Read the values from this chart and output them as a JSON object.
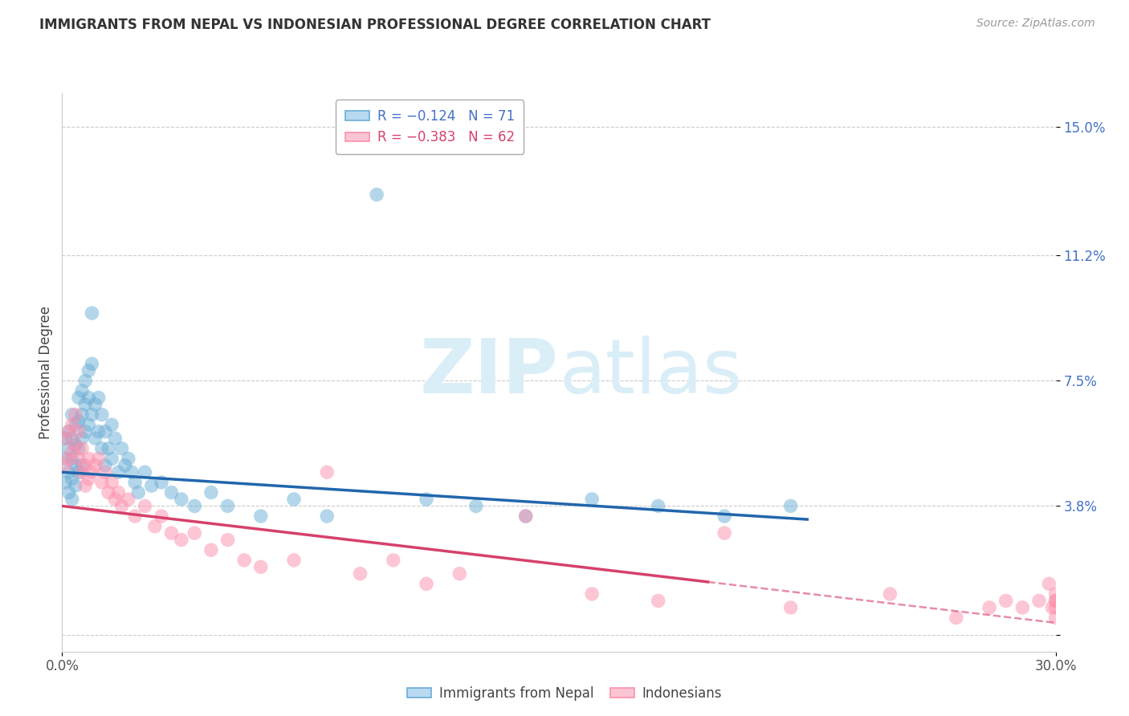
{
  "title": "IMMIGRANTS FROM NEPAL VS INDONESIAN PROFESSIONAL DEGREE CORRELATION CHART",
  "source": "Source: ZipAtlas.com",
  "ylabel": "Professional Degree",
  "yticks": [
    0.0,
    0.038,
    0.075,
    0.112,
    0.15
  ],
  "ytick_labels": [
    "",
    "3.8%",
    "7.5%",
    "11.2%",
    "15.0%"
  ],
  "xlim": [
    0.0,
    0.3
  ],
  "ylim": [
    -0.005,
    0.16
  ],
  "nepal_color": "#6baed6",
  "indonesia_color": "#fc8fac",
  "nepal_line_color": "#2166ac",
  "indonesia_line_color": "#d6416b",
  "background_color": "#ffffff",
  "watermark_color": "#daeef8",
  "nepal_intercept": 0.048,
  "nepal_slope": -0.062,
  "nepal_line_xend": 0.225,
  "indonesia_intercept": 0.038,
  "indonesia_slope": -0.115,
  "indonesia_solid_xend": 0.195,
  "nepal_x": [
    0.001,
    0.001,
    0.001,
    0.002,
    0.002,
    0.002,
    0.002,
    0.003,
    0.003,
    0.003,
    0.003,
    0.003,
    0.004,
    0.004,
    0.004,
    0.004,
    0.005,
    0.005,
    0.005,
    0.005,
    0.006,
    0.006,
    0.006,
    0.006,
    0.007,
    0.007,
    0.007,
    0.008,
    0.008,
    0.008,
    0.009,
    0.009,
    0.009,
    0.01,
    0.01,
    0.011,
    0.011,
    0.012,
    0.012,
    0.013,
    0.013,
    0.014,
    0.015,
    0.015,
    0.016,
    0.017,
    0.018,
    0.019,
    0.02,
    0.021,
    0.022,
    0.023,
    0.025,
    0.027,
    0.03,
    0.033,
    0.036,
    0.04,
    0.045,
    0.05,
    0.06,
    0.07,
    0.08,
    0.095,
    0.11,
    0.125,
    0.14,
    0.16,
    0.18,
    0.2,
    0.22
  ],
  "nepal_y": [
    0.058,
    0.052,
    0.045,
    0.06,
    0.055,
    0.048,
    0.042,
    0.065,
    0.058,
    0.052,
    0.046,
    0.04,
    0.062,
    0.056,
    0.05,
    0.044,
    0.07,
    0.063,
    0.055,
    0.048,
    0.072,
    0.065,
    0.058,
    0.05,
    0.075,
    0.068,
    0.06,
    0.078,
    0.07,
    0.062,
    0.095,
    0.08,
    0.065,
    0.068,
    0.058,
    0.07,
    0.06,
    0.065,
    0.055,
    0.06,
    0.05,
    0.055,
    0.062,
    0.052,
    0.058,
    0.048,
    0.055,
    0.05,
    0.052,
    0.048,
    0.045,
    0.042,
    0.048,
    0.044,
    0.045,
    0.042,
    0.04,
    0.038,
    0.042,
    0.038,
    0.035,
    0.04,
    0.035,
    0.13,
    0.04,
    0.038,
    0.035,
    0.04,
    0.038,
    0.035,
    0.038
  ],
  "indonesia_x": [
    0.001,
    0.001,
    0.002,
    0.002,
    0.003,
    0.003,
    0.004,
    0.004,
    0.005,
    0.005,
    0.006,
    0.006,
    0.007,
    0.007,
    0.008,
    0.008,
    0.009,
    0.01,
    0.011,
    0.012,
    0.013,
    0.014,
    0.015,
    0.016,
    0.017,
    0.018,
    0.02,
    0.022,
    0.025,
    0.028,
    0.03,
    0.033,
    0.036,
    0.04,
    0.045,
    0.05,
    0.055,
    0.06,
    0.07,
    0.08,
    0.09,
    0.1,
    0.11,
    0.12,
    0.14,
    0.16,
    0.18,
    0.2,
    0.22,
    0.25,
    0.27,
    0.28,
    0.285,
    0.29,
    0.295,
    0.298,
    0.299,
    0.3,
    0.3,
    0.3,
    0.3,
    0.3
  ],
  "indonesia_y": [
    0.058,
    0.05,
    0.06,
    0.052,
    0.062,
    0.054,
    0.065,
    0.056,
    0.06,
    0.052,
    0.055,
    0.048,
    0.05,
    0.044,
    0.052,
    0.046,
    0.048,
    0.05,
    0.052,
    0.045,
    0.048,
    0.042,
    0.045,
    0.04,
    0.042,
    0.038,
    0.04,
    0.035,
    0.038,
    0.032,
    0.035,
    0.03,
    0.028,
    0.03,
    0.025,
    0.028,
    0.022,
    0.02,
    0.022,
    0.048,
    0.018,
    0.022,
    0.015,
    0.018,
    0.035,
    0.012,
    0.01,
    0.03,
    0.008,
    0.012,
    0.005,
    0.008,
    0.01,
    0.008,
    0.01,
    0.015,
    0.008,
    0.01,
    0.005,
    0.008,
    0.01,
    0.012
  ]
}
